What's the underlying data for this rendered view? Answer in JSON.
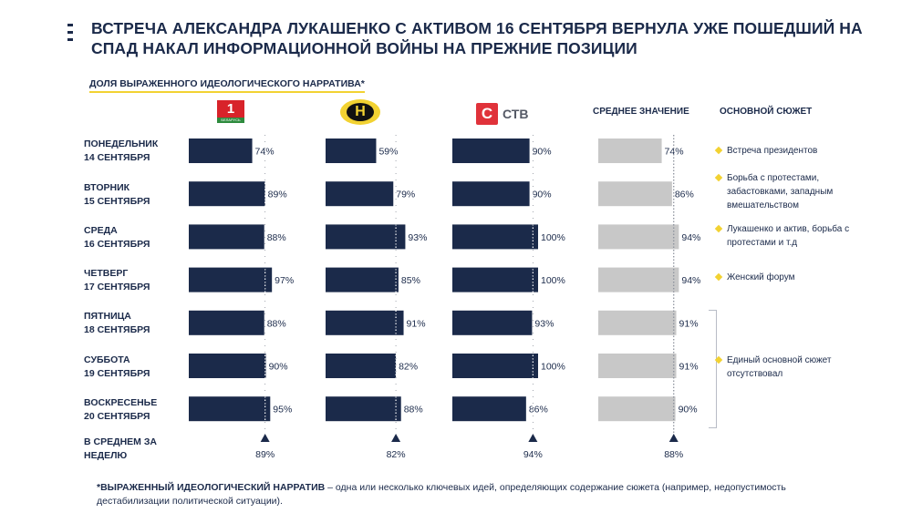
{
  "header": {
    "title": "ВСТРЕЧА АЛЕКСАНДРА ЛУКАШЕНКО С АКТИВОМ 16 СЕНТЯБРЯ ВЕРНУЛА УЖЕ ПОШЕДШИЙ НА СПАД НАКАЛ ИНФОРМАЦИОННОЙ ВОЙНЫ НА ПРЕЖНИЕ ПОЗИЦИИ",
    "subtitle": "ДОЛЯ ВЫРАЖЕННОГО ИДЕОЛОГИЧЕСКОГО НАРРАТИВА*"
  },
  "logos": {
    "belarus1_digit": "1",
    "belarus1_text": "БЕЛАРУСЬ",
    "ont_letter": "Н",
    "ctv_letter": "С",
    "ctv_text": "СТВ"
  },
  "columns": {
    "average_header": "СРЕДНЕЕ ЗНАЧЕНИЕ",
    "story_header": "ОСНОВНОЙ СЮЖЕТ"
  },
  "rows": [
    {
      "day": "ПОНЕДЕЛЬНИК",
      "date": "14 СЕНТЯБРЯ"
    },
    {
      "day": "ВТОРНИК",
      "date": "15 СЕНТЯБРЯ"
    },
    {
      "day": "СРЕДА",
      "date": "16 СЕНТЯБРЯ"
    },
    {
      "day": "ЧЕТВЕРГ",
      "date": "17 СЕНТЯБРЯ"
    },
    {
      "day": "ПЯТНИЦА",
      "date": "18 СЕНТЯБРЯ"
    },
    {
      "day": "СУББОТА",
      "date": "19 СЕНТЯБРЯ"
    },
    {
      "day": "ВОСКРЕСЕНЬЕ",
      "date": "20 СЕНТЯБРЯ"
    }
  ],
  "average_row": {
    "line1": "В СРЕДНЕМ ЗА",
    "line2": "НЕДЕЛЮ"
  },
  "stories": {
    "s1": "Встреча президентов",
    "s2": "Борьба с протестами, забастовками, западным вмешательством",
    "s3": "Лукашенко и актив, борьба с протестами и т.д",
    "s4": "Женский форум",
    "s5": "Единый основной сюжет отсутствовал"
  },
  "footnote": {
    "term": "*ВЫРАЖЕННЫЙ ИДЕОЛОГИЧЕСКИЙ НАРРАТИВ",
    "text": " – одна или несколько ключевых идей, определяющих содержание сюжета (например, недопустимость дестабилизации политической ситуации)."
  },
  "colors": {
    "navy": "#1b2a4a",
    "grey": "#c8c8c8",
    "yellow": "#f2d232",
    "red_ctv": "#e0323a",
    "green_b1": "#2e8b3e",
    "red_b1": "#d8232a"
  },
  "chart_data": {
    "type": "bar",
    "orientation": "horizontal",
    "categories": [
      "ПОНЕДЕЛЬНИК 14 СЕНТЯБРЯ",
      "ВТОРНИК 15 СЕНТЯБРЯ",
      "СРЕДА 16 СЕНТЯБРЯ",
      "ЧЕТВЕРГ 17 СЕНТЯБРЯ",
      "ПЯТНИЦА 18 СЕНТЯБРЯ",
      "СУББОТА 19 СЕНТЯБРЯ",
      "ВОСКРЕСЕНЬЕ 20 СЕНТЯБРЯ"
    ],
    "value_unit": "%",
    "xlim": [
      0,
      100
    ],
    "series": [
      {
        "values": [
          74,
          89,
          88,
          97,
          88,
          90,
          95
        ],
        "weekly_average": 89,
        "color": "#1b2a4a"
      },
      {
        "values": [
          59,
          79,
          93,
          85,
          91,
          82,
          88
        ],
        "weekly_average": 82,
        "color": "#1b2a4a"
      },
      {
        "values": [
          90,
          90,
          100,
          100,
          93,
          100,
          86
        ],
        "weekly_average": 94,
        "color": "#1b2a4a"
      },
      {
        "name": "СРЕДНЕЕ ЗНАЧЕНИЕ",
        "values": [
          74,
          86,
          94,
          94,
          91,
          91,
          90
        ],
        "weekly_average": 88,
        "color": "#c8c8c8"
      }
    ]
  }
}
